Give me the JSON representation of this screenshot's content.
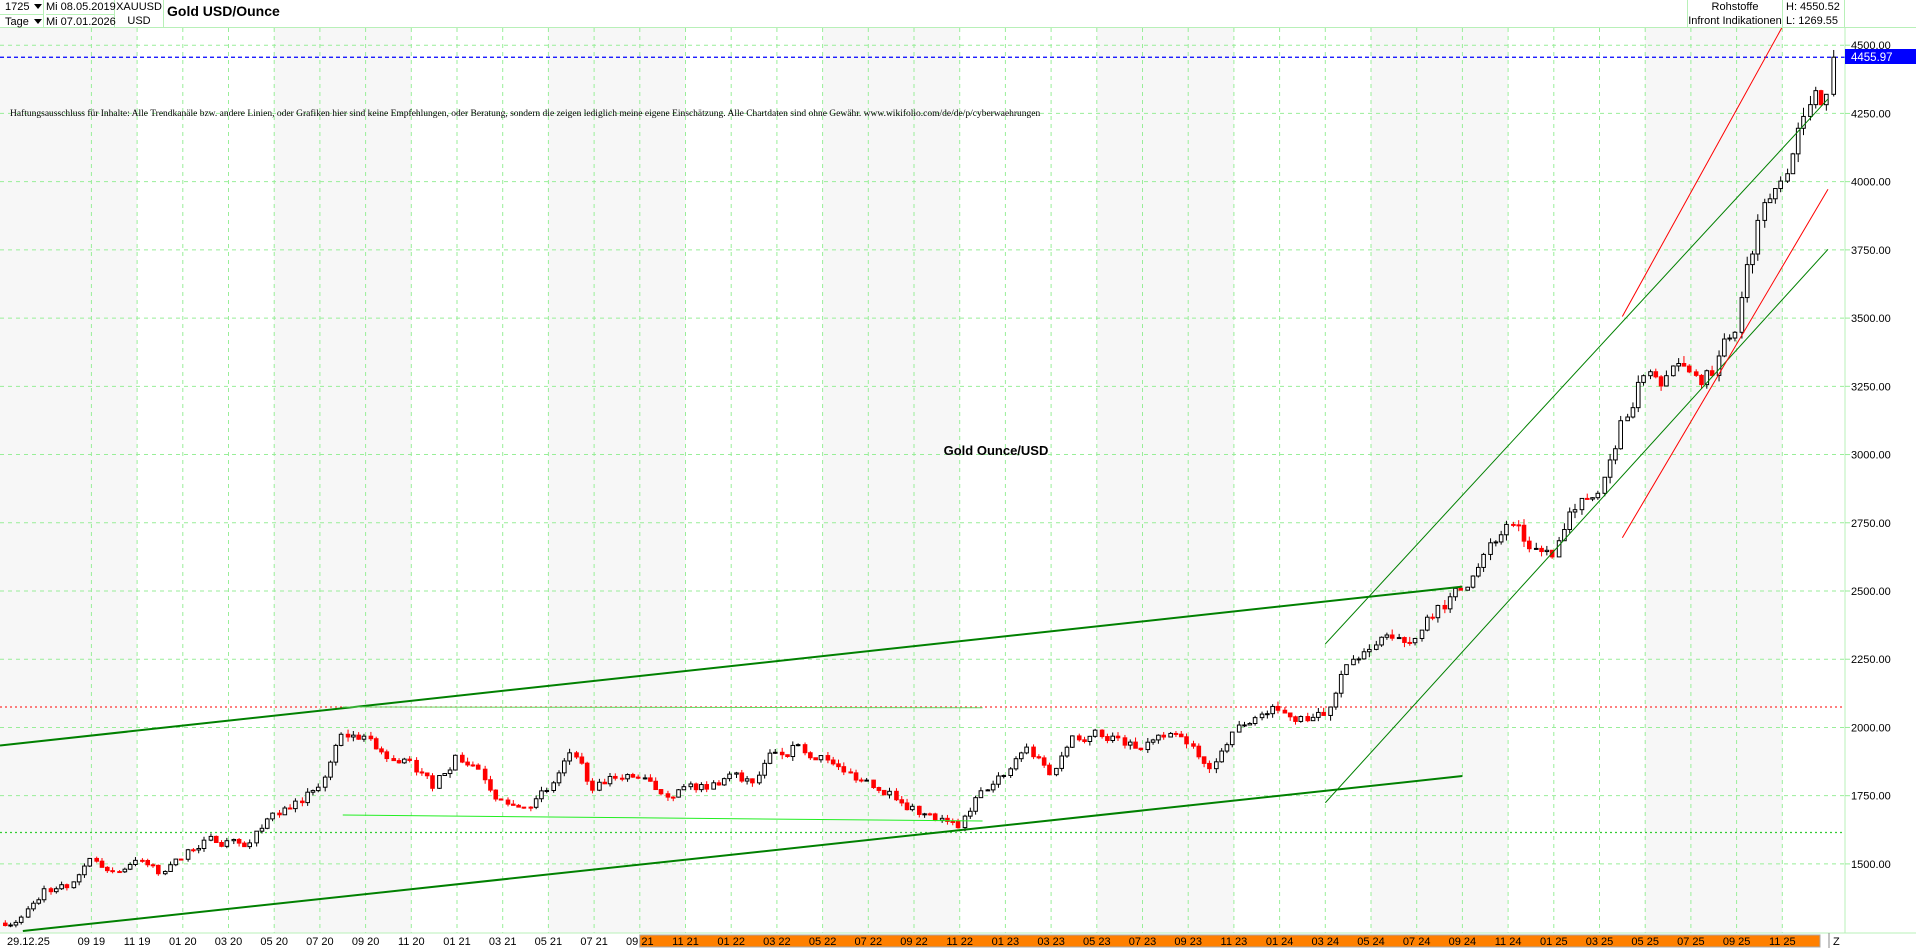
{
  "header": {
    "period_count": "1725",
    "interval": "Tage",
    "start_date": "Mi 08.05.2019",
    "end_date": "Mi 07.01.2026",
    "symbol": "XAUUSD",
    "currency": "USD",
    "title": "Gold USD/Ounce",
    "category": "Rohstoffe",
    "source": "Infront Indikationen",
    "high": "H: 4550.52",
    "low": "L: 1269.55"
  },
  "disclaimer": "Haftungsausschluss für Inhalte: Alle Trendkanäle bzw. andere Linien, oder Grafiken hier sind keine Empfehlungen, oder Beratung, sondern die zeigen lediglich meine eigene Einschätzung. Alle Chartdaten sind ohne Gewähr.  www.wikifolio.com/de/de/p/cyberwaehrungen",
  "chart_label": "Gold Ounce/USD",
  "colors": {
    "up_candle": "#000000",
    "down_candle": "#ff0000",
    "grid": "#99ee99",
    "last_price": "#0000ff",
    "axis_band": "#ff8000",
    "trend_green_dark": "#008000",
    "trend_green_light": "#33dd33",
    "trend_red": "#ff0000"
  },
  "chart_data": {
    "type": "candlestick",
    "title": "Gold USD/Ounce",
    "ylim": [
      1269.55,
      4550.52
    ],
    "grid": true,
    "y_ticks": [
      "1500.00",
      "1750.00",
      "2000.00",
      "2250.00",
      "2500.00",
      "2750.00",
      "3000.00",
      "3250.00",
      "3500.00",
      "3750.00",
      "4000.00",
      "4250.00",
      "4500.00"
    ],
    "x_first_label": "29.12.25",
    "x_ticks": [
      "09 19",
      "11 19",
      "01 20",
      "03 20",
      "05 20",
      "07 20",
      "09 20",
      "11 20",
      "01 21",
      "03 21",
      "05 21",
      "07 21",
      "09 21",
      "11 21",
      "01 22",
      "03 22",
      "05 22",
      "07 22",
      "09 22",
      "11 22",
      "01 23",
      "03 23",
      "05 23",
      "07 23",
      "09 23",
      "11 23",
      "01 24",
      "03 24",
      "05 24",
      "07 24",
      "09 24",
      "11 24",
      "01 25",
      "03 25",
      "05 25",
      "07 25",
      "09 25",
      "11 25"
    ],
    "x_end_label": "Z",
    "start": {
      "date": "2019-05-08",
      "price": 1283
    },
    "monthly_close": {
      "months": [
        "2019-05",
        "2019-06",
        "2019-07",
        "2019-08",
        "2019-09",
        "2019-10",
        "2019-11",
        "2019-12",
        "2020-01",
        "2020-02",
        "2020-03",
        "2020-04",
        "2020-05",
        "2020-06",
        "2020-07",
        "2020-08",
        "2020-09",
        "2020-10",
        "2020-11",
        "2020-12",
        "2021-01",
        "2021-02",
        "2021-03",
        "2021-04",
        "2021-05",
        "2021-06",
        "2021-07",
        "2021-08",
        "2021-09",
        "2021-10",
        "2021-11",
        "2021-12",
        "2022-01",
        "2022-02",
        "2022-03",
        "2022-04",
        "2022-05",
        "2022-06",
        "2022-07",
        "2022-08",
        "2022-09",
        "2022-10",
        "2022-11",
        "2022-12",
        "2023-01",
        "2023-02",
        "2023-03",
        "2023-04",
        "2023-05",
        "2023-06",
        "2023-07",
        "2023-08",
        "2023-09",
        "2023-10",
        "2023-11",
        "2023-12",
        "2024-01",
        "2024-02",
        "2024-03",
        "2024-04",
        "2024-05",
        "2024-06",
        "2024-07",
        "2024-08",
        "2024-09",
        "2024-10",
        "2024-11",
        "2024-12",
        "2025-01",
        "2025-02",
        "2025-03",
        "2025-04",
        "2025-05",
        "2025-06",
        "2025-07",
        "2025-08",
        "2025-09",
        "2025-10",
        "2025-11",
        "2025-12",
        "2026-01"
      ],
      "values": [
        1305,
        1409,
        1413,
        1520,
        1472,
        1513,
        1464,
        1517,
        1587,
        1585,
        1577,
        1686,
        1730,
        1781,
        1975,
        1968,
        1886,
        1879,
        1777,
        1898,
        1847,
        1734,
        1708,
        1769,
        1907,
        1770,
        1814,
        1814,
        1757,
        1783,
        1774,
        1829,
        1797,
        1909,
        1937,
        1897,
        1837,
        1807,
        1766,
        1711,
        1660,
        1633,
        1768,
        1824,
        1928,
        1827,
        1969,
        1990,
        1962,
        1919,
        1965,
        1940,
        1849,
        1983,
        2036,
        2063,
        2040,
        2044,
        2230,
        2286,
        2327,
        2326,
        2447,
        2503,
        2634,
        2744,
        2655,
        2625,
        2798,
        2858,
        3124,
        3289,
        3289,
        3303,
        3290,
        3448,
        3858,
        4002,
        4239,
        4320,
        4455.97
      ]
    },
    "last_price": "4455.97",
    "horizontal_lines": [
      {
        "price": 4455.97,
        "color": "#0000ff",
        "style": "dashed"
      },
      {
        "price": 2075,
        "color": "#ff3333",
        "style": "dotted"
      },
      {
        "price": 1615,
        "color": "#33cc33",
        "style": "dotted"
      }
    ],
    "trend_lines": [
      {
        "from": [
          "2019-05",
          1934
        ],
        "to": [
          "2024-09",
          2516
        ],
        "color": "#008000",
        "width": 2
      },
      {
        "from": [
          "2019-06",
          1254
        ],
        "to": [
          "2024-09",
          1822
        ],
        "color": "#008000",
        "width": 2
      },
      {
        "from": [
          "2020-08",
          2075
        ],
        "to": [
          "2022-12",
          2072
        ],
        "color": "#66dd66",
        "width": 1
      },
      {
        "from": [
          "2020-08",
          1679
        ],
        "to": [
          "2022-12",
          1657
        ],
        "color": "#22ee22",
        "width": 1
      },
      {
        "from": [
          "2024-03",
          2306
        ],
        "to": [
          "2026-01",
          4303
        ],
        "color": "#008000",
        "width": 1
      },
      {
        "from": [
          "2024-03",
          1724
        ],
        "to": [
          "2026-01",
          3752
        ],
        "color": "#008000",
        "width": 1
      },
      {
        "from": [
          "2025-04",
          3506
        ],
        "to": [
          "2025-11",
          4567
        ],
        "color": "#ff0000",
        "width": 1
      },
      {
        "from": [
          "2025-04",
          2695
        ],
        "to": [
          "2026-01",
          3972
        ],
        "color": "#ff0000",
        "width": 1
      }
    ]
  }
}
